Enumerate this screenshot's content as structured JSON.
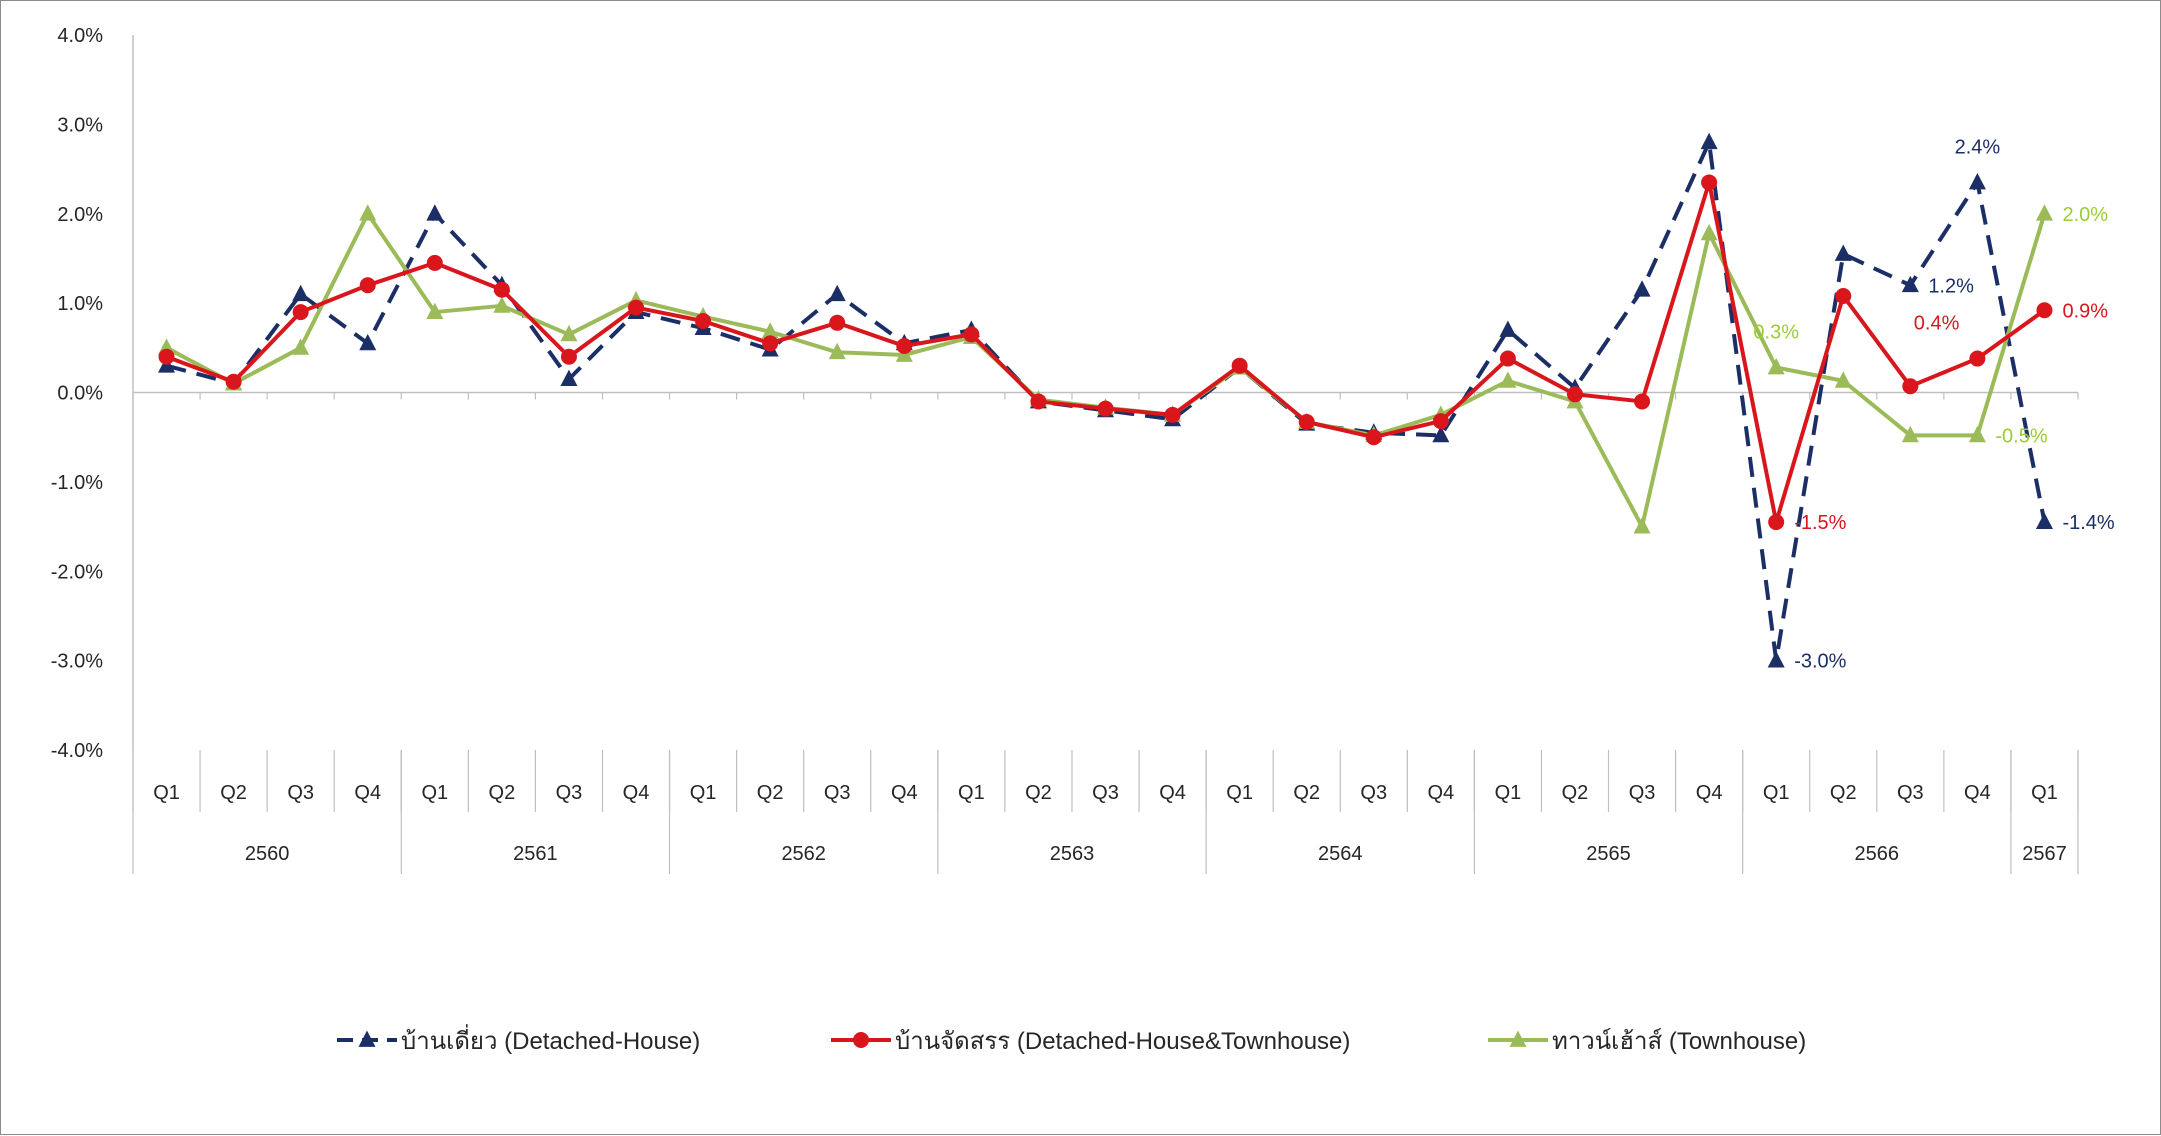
{
  "chart_data": {
    "type": "line",
    "title": "",
    "xlabel": "",
    "ylabel": "",
    "ylim": [
      -4.0,
      4.0
    ],
    "ytick_step": 1.0,
    "y_tick_labels": [
      "4.0%",
      "3.0%",
      "2.0%",
      "1.0%",
      "0.0%",
      "-1.0%",
      "-2.0%",
      "-3.0%",
      "-4.0%"
    ],
    "grid": false,
    "legend_position": "bottom",
    "categories": [
      "Q1",
      "Q2",
      "Q3",
      "Q4",
      "Q1",
      "Q2",
      "Q3",
      "Q4",
      "Q1",
      "Q2",
      "Q3",
      "Q4",
      "Q1",
      "Q2",
      "Q3",
      "Q4",
      "Q1",
      "Q2",
      "Q3",
      "Q4",
      "Q1",
      "Q2",
      "Q3",
      "Q4",
      "Q1",
      "Q2",
      "Q3",
      "Q4",
      "Q1"
    ],
    "year_groups": [
      {
        "label": "2560",
        "count": 4
      },
      {
        "label": "2561",
        "count": 4
      },
      {
        "label": "2562",
        "count": 4
      },
      {
        "label": "2563",
        "count": 4
      },
      {
        "label": "2564",
        "count": 4
      },
      {
        "label": "2565",
        "count": 4
      },
      {
        "label": "2566",
        "count": 4
      },
      {
        "label": "2567",
        "count": 1
      }
    ],
    "series": [
      {
        "name": "บ้านเดี่ยว (Detached-House)",
        "color": "#1b2f66",
        "line_style": "dashed",
        "marker": "triangle",
        "values": [
          0.3,
          0.1,
          1.1,
          0.55,
          2.0,
          1.2,
          0.15,
          0.9,
          0.72,
          0.48,
          1.1,
          0.55,
          0.7,
          -0.1,
          -0.2,
          -0.3,
          0.28,
          -0.35,
          -0.45,
          -0.48,
          0.7,
          0.05,
          1.15,
          2.8,
          -3.0,
          1.55,
          1.2,
          2.35,
          -1.45
        ]
      },
      {
        "name": "บ้านจัดสรร (Detached-House&Townhouse)",
        "color": "#d9161c",
        "line_style": "solid",
        "marker": "circle",
        "values": [
          0.4,
          0.12,
          0.9,
          1.2,
          1.45,
          1.15,
          0.4,
          0.95,
          0.8,
          0.55,
          0.78,
          0.52,
          0.65,
          -0.1,
          -0.18,
          -0.25,
          0.3,
          -0.33,
          -0.5,
          -0.32,
          0.38,
          -0.02,
          -0.1,
          2.35,
          -1.45,
          1.08,
          0.07,
          0.38,
          0.92
        ]
      },
      {
        "name": "ทาวน์เฮ้าส์ (Townhouse)",
        "color": "#9bbb59",
        "line_style": "solid",
        "marker": "triangle",
        "values": [
          0.5,
          0.1,
          0.5,
          2.0,
          0.9,
          0.97,
          0.65,
          1.03,
          0.85,
          0.68,
          0.45,
          0.42,
          0.62,
          -0.08,
          -0.17,
          -0.25,
          0.28,
          -0.33,
          -0.48,
          -0.25,
          0.13,
          -0.1,
          -1.5,
          1.78,
          0.28,
          0.13,
          -0.48,
          -0.48,
          2.0
        ]
      }
    ],
    "annotations": [
      {
        "series": 0,
        "index": 24,
        "text": "-3.0%",
        "position": "right"
      },
      {
        "series": 0,
        "index": 27,
        "text": "2.4%",
        "position": "above"
      },
      {
        "series": 0,
        "index": 26,
        "text": "1.2%",
        "position": "right"
      },
      {
        "series": 0,
        "index": 28,
        "text": "-1.4%",
        "position": "right"
      },
      {
        "series": 1,
        "index": 24,
        "text": "-1.5%",
        "position": "right"
      },
      {
        "series": 1,
        "index": 27,
        "text": "0.4%",
        "position": "left"
      },
      {
        "series": 1,
        "index": 28,
        "text": "0.9%",
        "position": "right"
      },
      {
        "series": 2,
        "index": 24,
        "text": "0.3%",
        "position": "above"
      },
      {
        "series": 2,
        "index": 27,
        "text": "-0.5%",
        "position": "right"
      },
      {
        "series": 2,
        "index": 28,
        "text": "2.0%",
        "position": "right"
      }
    ]
  }
}
